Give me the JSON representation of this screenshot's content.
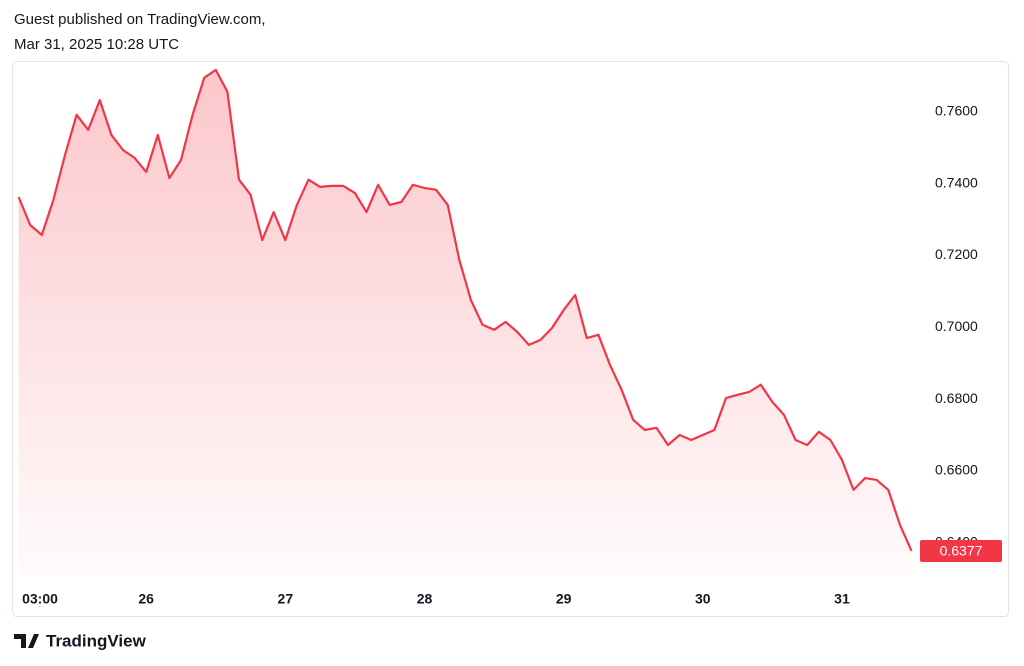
{
  "header": {
    "line1": "Guest published on TradingView.com,",
    "line2": "Mar 31, 2025 10:28 UTC"
  },
  "footer": {
    "brand": "TradingView"
  },
  "chart_data": {
    "type": "area",
    "color": "#f23645",
    "grid": false,
    "x": [
      2,
      4,
      6,
      8,
      10,
      12,
      14,
      16,
      18,
      20,
      22,
      24,
      26,
      28,
      30,
      32,
      34,
      36,
      38,
      40,
      42,
      44,
      46,
      48,
      50,
      52,
      54,
      56,
      58,
      60,
      62,
      64,
      66,
      68,
      70,
      72,
      74,
      76,
      78,
      80,
      82,
      84,
      86,
      88,
      90,
      92,
      94,
      96,
      98,
      100,
      102,
      104,
      106,
      108,
      110,
      112,
      114,
      116,
      118,
      120,
      122,
      124,
      126,
      128,
      130,
      132,
      134,
      136,
      138,
      140,
      142,
      144,
      146,
      148,
      150,
      152,
      154,
      156
    ],
    "values": [
      0.7363,
      0.7285,
      0.7257,
      0.7355,
      0.748,
      0.7592,
      0.755,
      0.7633,
      0.7536,
      0.7494,
      0.7472,
      0.7433,
      0.7536,
      0.7416,
      0.7466,
      0.7592,
      0.7695,
      0.7717,
      0.7656,
      0.7411,
      0.7369,
      0.7243,
      0.7321,
      0.7243,
      0.7341,
      0.7411,
      0.7391,
      0.7394,
      0.7394,
      0.7374,
      0.7321,
      0.7397,
      0.7341,
      0.7349,
      0.7397,
      0.7388,
      0.7383,
      0.7341,
      0.7188,
      0.7076,
      0.7007,
      0.6993,
      0.7015,
      0.6987,
      0.6951,
      0.6965,
      0.6998,
      0.7048,
      0.709,
      0.697,
      0.6979,
      0.6895,
      0.6826,
      0.6742,
      0.6714,
      0.672,
      0.6672,
      0.67,
      0.6686,
      0.67,
      0.6714,
      0.6803,
      0.6812,
      0.682,
      0.684,
      0.6792,
      0.6756,
      0.6686,
      0.6672,
      0.6709,
      0.6686,
      0.6631,
      0.6547,
      0.658,
      0.6575,
      0.6547,
      0.645,
      0.6377
    ],
    "xlim": [
      1.2,
      156.6
    ],
    "xticks": [
      {
        "value": 3,
        "label": "03:00"
      },
      {
        "value": 24,
        "label": "26"
      },
      {
        "value": 48,
        "label": "27"
      },
      {
        "value": 72,
        "label": "28"
      },
      {
        "value": 96,
        "label": "29"
      },
      {
        "value": 120,
        "label": "30"
      },
      {
        "value": 144,
        "label": "31"
      }
    ],
    "ylim": [
      0.631,
      0.7739
    ],
    "yticks": [
      {
        "value": 0.64,
        "label": "0.6400"
      },
      {
        "value": 0.66,
        "label": "0.6600"
      },
      {
        "value": 0.68,
        "label": "0.6800"
      },
      {
        "value": 0.7,
        "label": "0.7000"
      },
      {
        "value": 0.72,
        "label": "0.7200"
      },
      {
        "value": 0.74,
        "label": "0.7400"
      },
      {
        "value": 0.76,
        "label": "0.7600"
      }
    ]
  }
}
